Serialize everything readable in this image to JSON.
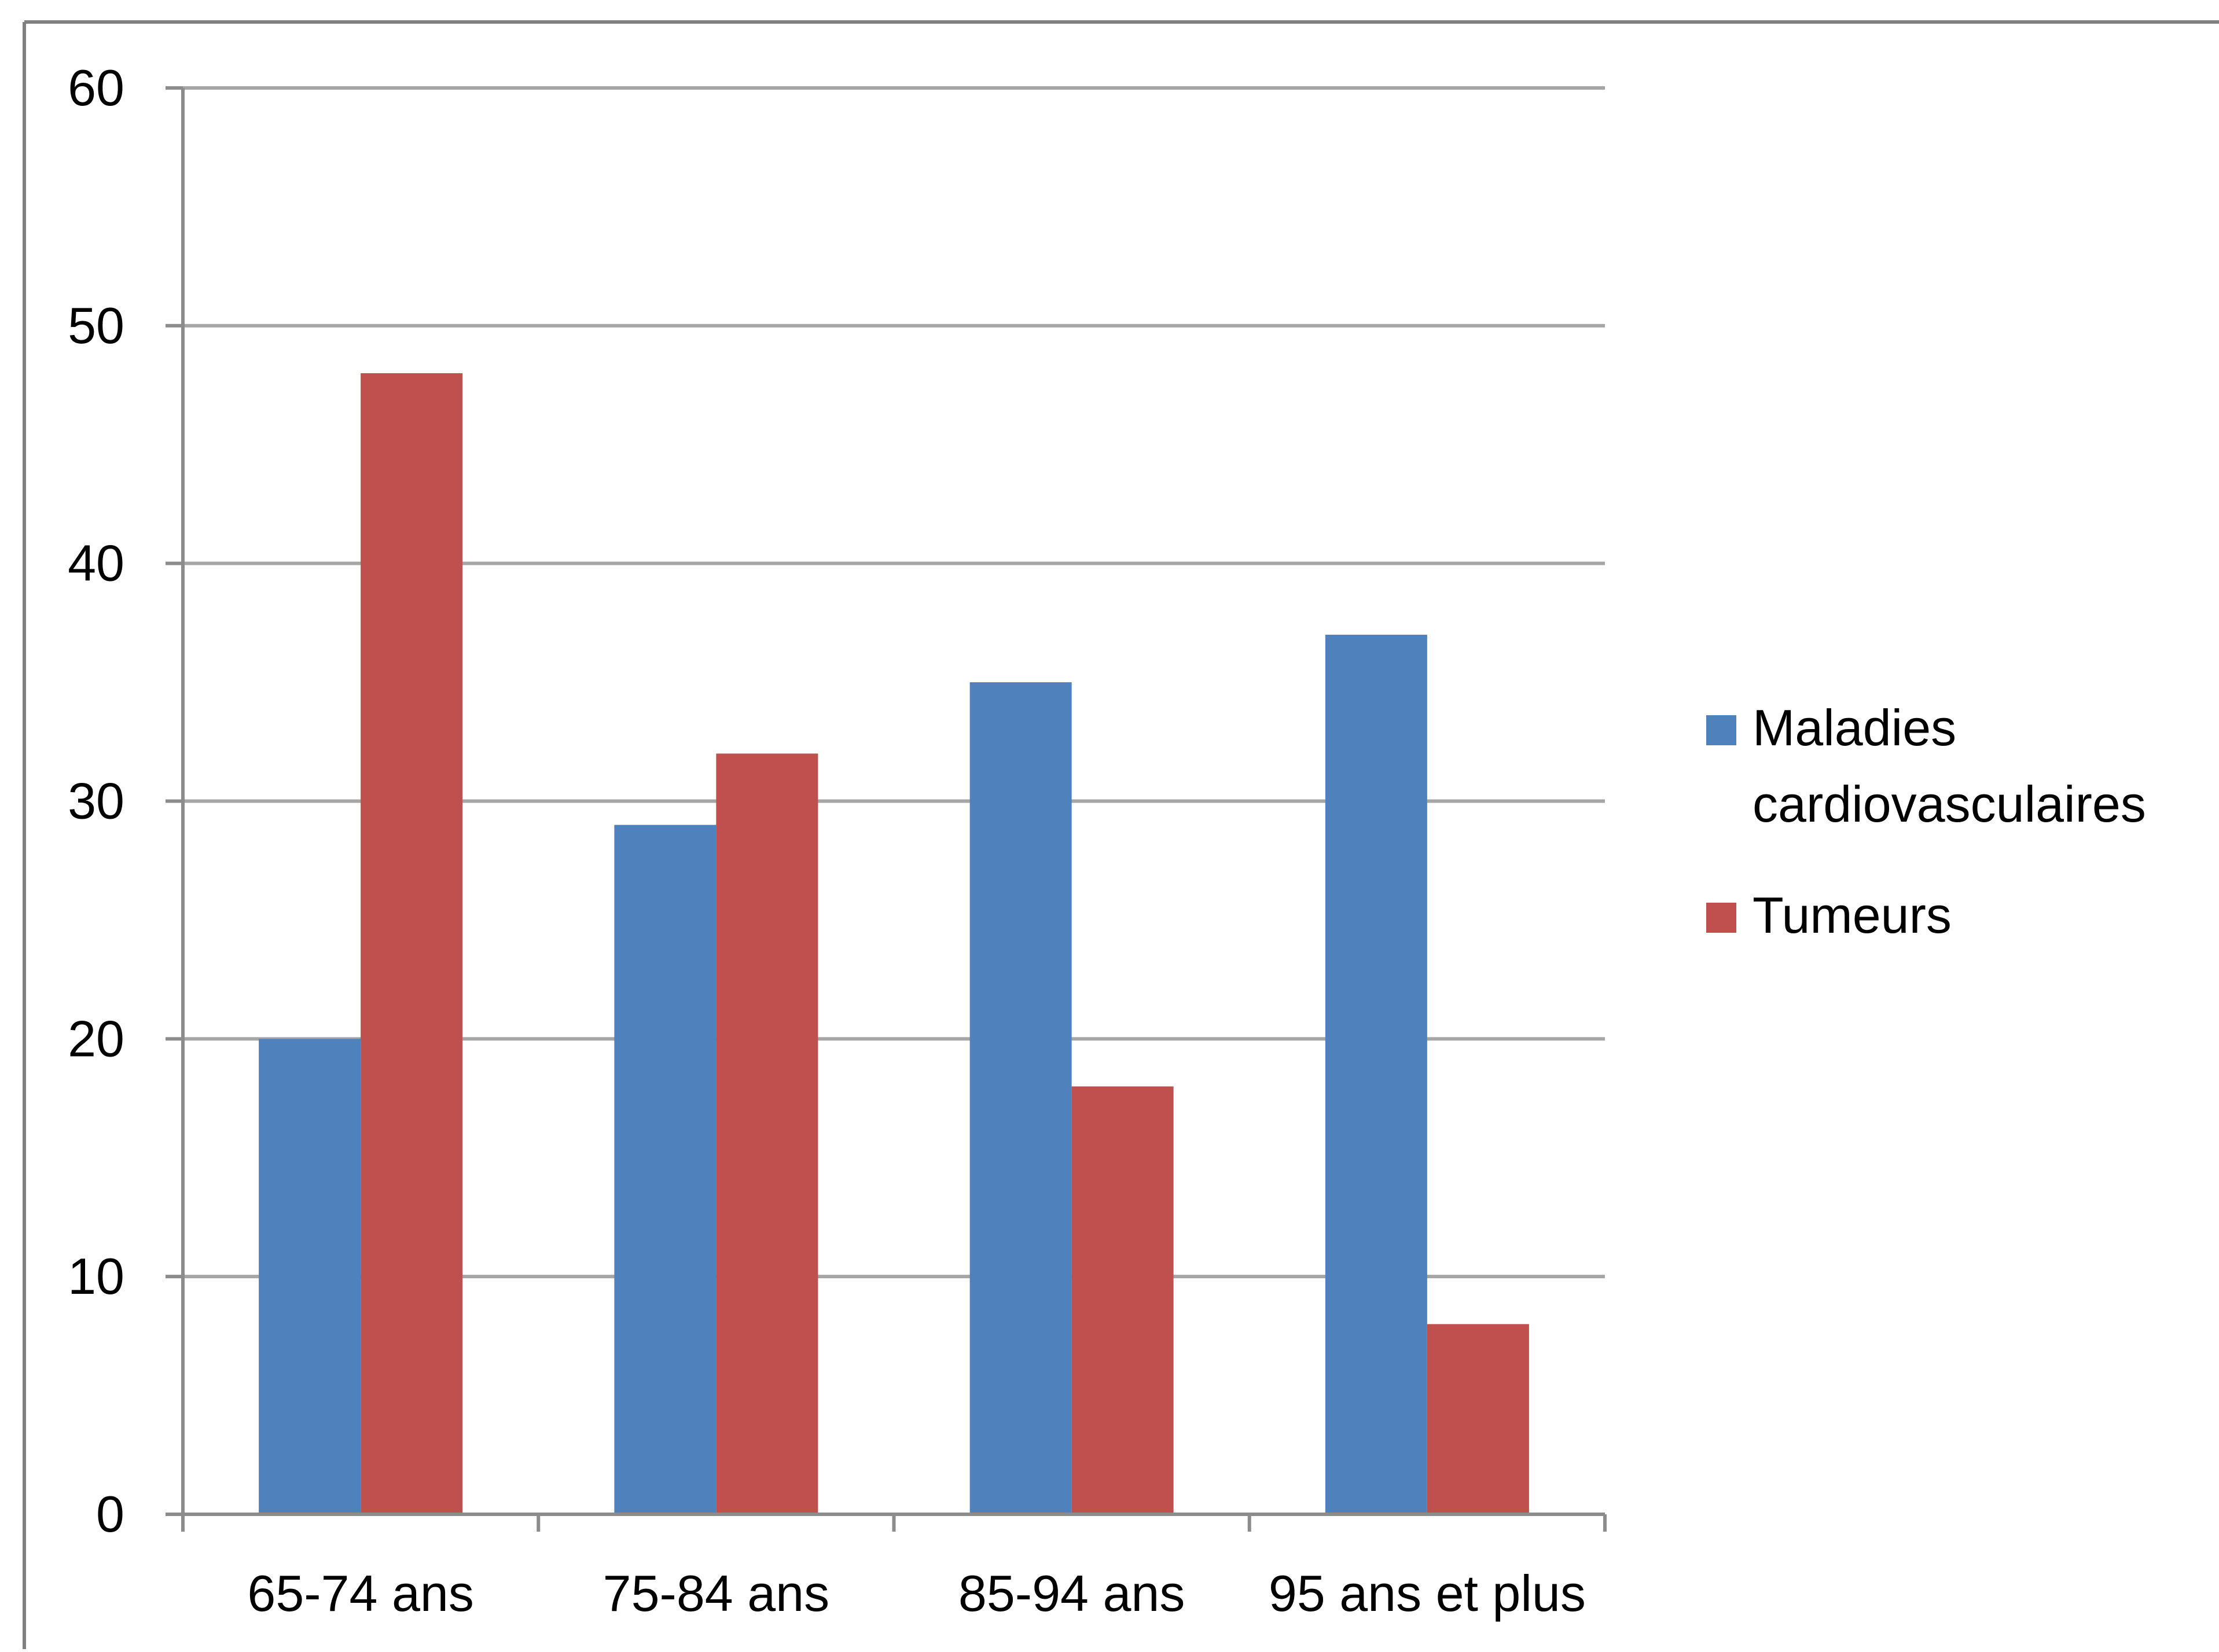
{
  "chart_data": {
    "type": "bar",
    "title": "",
    "xlabel": "",
    "ylabel": "",
    "categories": [
      "65-74 ans",
      "75-84 ans",
      "85-94 ans",
      "95 ans et plus"
    ],
    "series": [
      {
        "name": "Maladies cardiovasculaires",
        "name_lines": [
          "Maladies",
          "cardiovasculaires"
        ],
        "values": [
          20,
          29,
          35,
          37
        ],
        "color": "#4F81BD"
      },
      {
        "name": "Tumeurs",
        "name_lines": [
          "Tumeurs"
        ],
        "values": [
          48,
          32,
          18,
          8
        ],
        "color": "#C0504D"
      }
    ],
    "ylim": [
      0,
      60
    ],
    "yticks": [
      0,
      10,
      20,
      30,
      40,
      50,
      60
    ],
    "grid": true,
    "legend": "right",
    "colors": {
      "gridline": "#A6A6A6",
      "axis": "#8C8C8C",
      "frame": "#808080"
    }
  }
}
